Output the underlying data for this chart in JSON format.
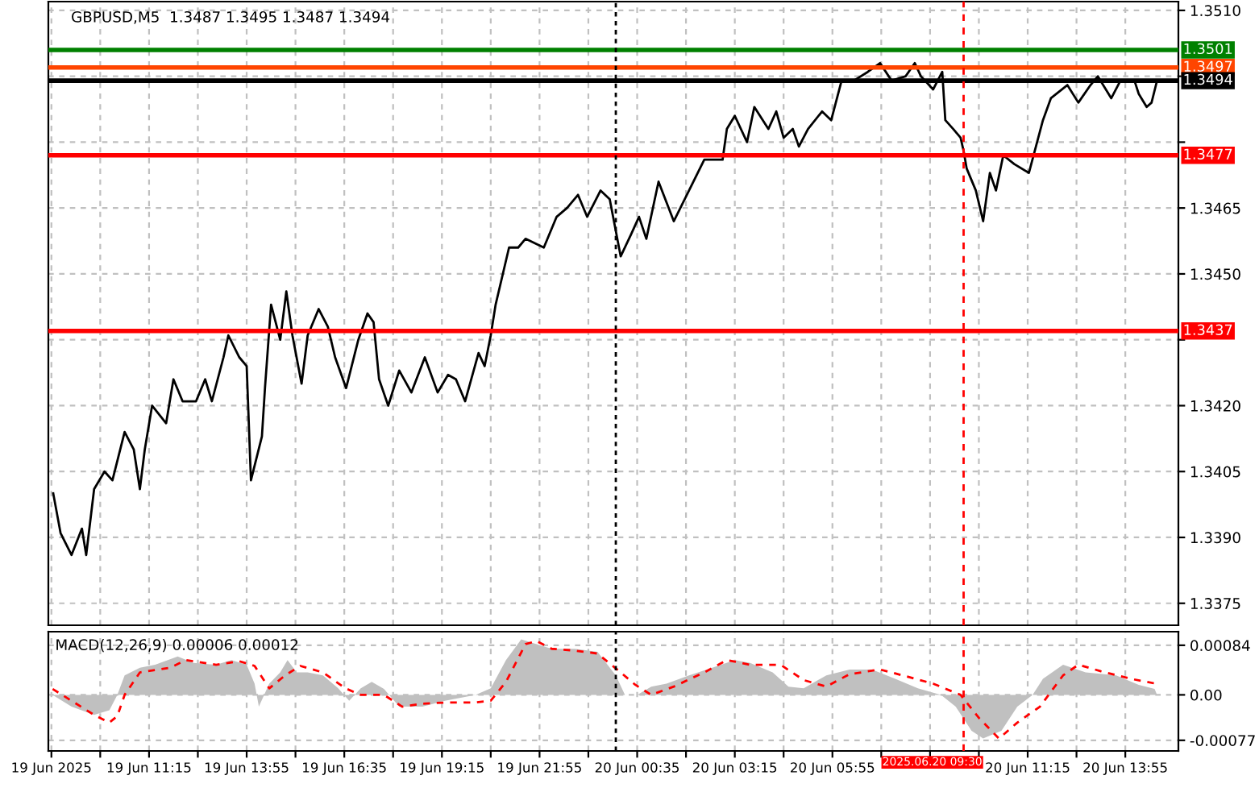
{
  "chart_data": [
    {
      "type": "line",
      "title": "GBPUSD,M5  1.3487 1.3495 1.3487 1.3494",
      "tick_labels": "y",
      "grid": true,
      "xlim": [
        "2025-06-19T08:30",
        "2025-06-20T15:22"
      ],
      "ylim": [
        1.337,
        1.3512
      ],
      "xticks": [
        {
          "value": "2025-06-19T08:35",
          "label": null
        },
        {
          "value": "2025-06-19T09:55",
          "label": null
        },
        {
          "value": "2025-06-19T11:15",
          "label": null
        },
        {
          "value": "2025-06-19T12:35",
          "label": null
        },
        {
          "value": "2025-06-19T13:55",
          "label": null
        },
        {
          "value": "2025-06-19T15:15",
          "label": null
        },
        {
          "value": "2025-06-19T16:35",
          "label": null
        },
        {
          "value": "2025-06-19T17:55",
          "label": null
        },
        {
          "value": "2025-06-19T19:15",
          "label": null
        },
        {
          "value": "2025-06-19T20:35",
          "label": null
        },
        {
          "value": "2025-06-19T21:55",
          "label": null
        },
        {
          "value": "2025-06-19T23:15",
          "label": null
        },
        {
          "value": "2025-06-20T00:35",
          "label": null
        },
        {
          "value": "2025-06-20T01:55",
          "label": null
        },
        {
          "value": "2025-06-20T03:15",
          "label": null
        },
        {
          "value": "2025-06-20T04:35",
          "label": null
        },
        {
          "value": "2025-06-20T05:55",
          "label": null
        },
        {
          "value": "2025-06-20T07:15",
          "label": null
        },
        {
          "value": "2025-06-20T08:35",
          "label": null
        },
        {
          "value": "2025-06-20T09:55",
          "label": null
        },
        {
          "value": "2025-06-20T11:15",
          "label": null
        },
        {
          "value": "2025-06-20T12:35",
          "label": null
        },
        {
          "value": "2025-06-20T13:55",
          "label": null
        }
      ],
      "yticks": [
        1.3375,
        {
          "value": 1.339,
          "label": "1.3390"
        },
        1.3405,
        {
          "value": 1.342,
          "label": "1.3420"
        },
        {
          "value": 1.3435,
          "label": null
        },
        {
          "value": 1.345,
          "label": "1.3450"
        },
        1.3465,
        {
          "value": 1.348,
          "label": null
        },
        {
          "value": 1.3495,
          "label": null
        },
        {
          "value": 1.351,
          "label": "1.3510"
        }
      ],
      "ref_lines": [
        {
          "axis": "y",
          "value": 1.3501,
          "label": "1.3501",
          "color": "#008000"
        },
        {
          "axis": "y",
          "value": 1.3497,
          "label": "1.3497",
          "color": "#ff4500"
        },
        {
          "axis": "y",
          "value": 1.3494,
          "label": "1.3494",
          "color": "#000000"
        },
        {
          "axis": "y",
          "value": 1.3477,
          "label": "1.3477",
          "color": "#ff0000"
        },
        {
          "axis": "y",
          "value": 1.3437,
          "label": "1.3437",
          "color": "#ff0000"
        },
        {
          "axis": "x",
          "value": "2025-06-20T00:00",
          "label": null,
          "color": "#000000",
          "line_style": "dotted"
        },
        {
          "axis": "x",
          "value": "2025-06-20T09:30",
          "label": null,
          "color": "#ff0000",
          "line_style": "dashed"
        }
      ],
      "series": [
        {
          "color": "#000000",
          "x": [
            "2025-06-19T08:38",
            "2025-06-19T08:50",
            "2025-06-19T09:08",
            "2025-06-19T09:25",
            "2025-06-19T09:32",
            "2025-06-19T09:45",
            "2025-06-19T10:02",
            "2025-06-19T10:15",
            "2025-06-19T10:35",
            "2025-06-19T10:50",
            "2025-06-19T11:00",
            "2025-06-19T11:08",
            "2025-06-19T11:20",
            "2025-06-19T11:43",
            "2025-06-19T11:55",
            "2025-06-19T12:10",
            "2025-06-19T12:32",
            "2025-06-19T12:47",
            "2025-06-19T12:58",
            "2025-06-19T13:17",
            "2025-06-19T13:25",
            "2025-06-19T13:43",
            "2025-06-19T13:55",
            "2025-06-19T14:02",
            "2025-06-19T14:20",
            "2025-06-19T14:25",
            "2025-06-19T14:35",
            "2025-06-19T14:50",
            "2025-06-19T15:00",
            "2025-06-19T15:10",
            "2025-06-19T15:25",
            "2025-06-19T15:35",
            "2025-06-19T15:53",
            "2025-06-19T16:08",
            "2025-06-19T16:20",
            "2025-06-19T16:38",
            "2025-06-19T16:58",
            "2025-06-19T17:13",
            "2025-06-19T17:23",
            "2025-06-19T17:32",
            "2025-06-19T17:47",
            "2025-06-19T18:05",
            "2025-06-19T18:25",
            "2025-06-19T18:47",
            "2025-06-19T19:08",
            "2025-06-19T19:25",
            "2025-06-19T19:38",
            "2025-06-19T19:53",
            "2025-06-19T20:15",
            "2025-06-19T20:25",
            "2025-06-19T20:35",
            "2025-06-19T20:43",
            "2025-06-19T21:05",
            "2025-06-19T21:20",
            "2025-06-19T21:32",
            "2025-06-19T22:02",
            "2025-06-19T22:23",
            "2025-06-19T22:40",
            "2025-06-19T22:58",
            "2025-06-19T23:13",
            "2025-06-19T23:35",
            "2025-06-19T23:50",
            "2025-06-20T00:08",
            "2025-06-20T00:25",
            "2025-06-20T00:38",
            "2025-06-20T00:50",
            "2025-06-20T01:10",
            "2025-06-20T01:35",
            "2025-06-20T02:00",
            "2025-06-20T02:25",
            "2025-06-20T02:55",
            "2025-06-20T03:02",
            "2025-06-20T03:15",
            "2025-06-20T03:35",
            "2025-06-20T03:47",
            "2025-06-20T04:10",
            "2025-06-20T04:23",
            "2025-06-20T04:35",
            "2025-06-20T04:50",
            "2025-06-20T05:00",
            "2025-06-20T05:15",
            "2025-06-20T05:38",
            "2025-06-20T05:53",
            "2025-06-20T06:10",
            "2025-06-20T06:30",
            "2025-06-20T06:53",
            "2025-06-20T07:13",
            "2025-06-20T07:32",
            "2025-06-20T07:55",
            "2025-06-20T08:10",
            "2025-06-20T08:20",
            "2025-06-20T08:40",
            "2025-06-20T08:55",
            "2025-06-20T09:00",
            "2025-06-20T09:13",
            "2025-06-20T09:25",
            "2025-06-20T09:30",
            "2025-06-20T09:35",
            "2025-06-20T09:50",
            "2025-06-20T10:02",
            "2025-06-20T10:13",
            "2025-06-20T10:23",
            "2025-06-20T10:35",
            "2025-06-20T10:53",
            "2025-06-20T11:17",
            "2025-06-20T11:40",
            "2025-06-20T11:53",
            "2025-06-20T12:20",
            "2025-06-20T12:38",
            "2025-06-20T12:58",
            "2025-06-20T13:10",
            "2025-06-20T13:32",
            "2025-06-20T13:47",
            "2025-06-20T14:10",
            "2025-06-20T14:17",
            "2025-06-20T14:30",
            "2025-06-20T14:38",
            "2025-06-20T14:47"
          ],
          "values": [
            1.34,
            1.3391,
            1.3386,
            1.3392,
            1.3386,
            1.3401,
            1.3405,
            1.3403,
            1.3414,
            1.341,
            1.3401,
            1.341,
            1.342,
            1.3416,
            1.3426,
            1.3421,
            1.3421,
            1.3426,
            1.3421,
            1.3431,
            1.3436,
            1.3431,
            1.3429,
            1.3403,
            1.3413,
            1.3424,
            1.3443,
            1.3435,
            1.3446,
            1.3436,
            1.3425,
            1.3436,
            1.3442,
            1.3438,
            1.3431,
            1.3424,
            1.3435,
            1.3441,
            1.3439,
            1.3426,
            1.342,
            1.3428,
            1.3423,
            1.3431,
            1.3423,
            1.3427,
            1.3426,
            1.3421,
            1.3432,
            1.3429,
            1.3436,
            1.3443,
            1.3456,
            1.3456,
            1.3458,
            1.3456,
            1.3463,
            1.3465,
            1.3468,
            1.3463,
            1.3469,
            1.3467,
            1.3454,
            1.3459,
            1.3463,
            1.3458,
            1.3471,
            1.3462,
            1.3469,
            1.3476,
            1.3476,
            1.3483,
            1.3486,
            1.348,
            1.3488,
            1.3483,
            1.3487,
            1.3481,
            1.3483,
            1.3479,
            1.3483,
            1.3487,
            1.3485,
            1.3494,
            1.3494,
            1.3496,
            1.3498,
            1.3494,
            1.3495,
            1.3498,
            1.3495,
            1.3492,
            1.3496,
            1.3485,
            1.3483,
            1.3481,
            1.3478,
            1.3474,
            1.3469,
            1.3462,
            1.3473,
            1.3469,
            1.3477,
            1.3475,
            1.3473,
            1.3485,
            1.349,
            1.3493,
            1.3489,
            1.3493,
            1.3495,
            1.349,
            1.3494,
            1.3494,
            1.3491,
            1.3488,
            1.3489,
            1.3494
          ]
        }
      ]
    },
    {
      "type": "line",
      "title": "MACD(12,26,9) 0.00006 0.00012",
      "grid": true,
      "xlim": [
        "2025-06-19T08:30",
        "2025-06-20T15:22"
      ],
      "ylim": [
        -0.00095,
        0.00107
      ],
      "xticks": [
        {
          "value": "2025-06-19T08:35",
          "label": "19 Jun 2025"
        },
        {
          "value": "2025-06-19T09:55",
          "label": null
        },
        {
          "value": "2025-06-19T11:15",
          "label": "19 Jun 11:15"
        },
        {
          "value": "2025-06-19T12:35",
          "label": null
        },
        {
          "value": "2025-06-19T13:55",
          "label": "19 Jun 13:55"
        },
        {
          "value": "2025-06-19T15:15",
          "label": null
        },
        {
          "value": "2025-06-19T16:35",
          "label": "19 Jun 16:35"
        },
        {
          "value": "2025-06-19T17:55",
          "label": null
        },
        {
          "value": "2025-06-19T19:15",
          "label": "19 Jun 19:15"
        },
        {
          "value": "2025-06-19T20:35",
          "label": null
        },
        {
          "value": "2025-06-19T21:55",
          "label": "19 Jun 21:55"
        },
        {
          "value": "2025-06-19T23:15",
          "label": null
        },
        {
          "value": "2025-06-20T00:35",
          "label": "20 Jun 00:35"
        },
        {
          "value": "2025-06-20T01:55",
          "label": null
        },
        {
          "value": "2025-06-20T03:15",
          "label": "20 Jun 03:15"
        },
        {
          "value": "2025-06-20T04:35",
          "label": null
        },
        {
          "value": "2025-06-20T05:55",
          "label": "20 Jun 05:55"
        },
        {
          "value": "2025-06-20T07:15",
          "label": null
        },
        {
          "value": "2025-06-20T08:35",
          "label": null
        },
        {
          "value": "2025-06-20T09:55",
          "label": null
        },
        {
          "value": "2025-06-20T11:15",
          "label": "20 Jun 11:15"
        },
        {
          "value": "2025-06-20T12:35",
          "label": null
        },
        {
          "value": "2025-06-20T13:55",
          "label": "20 Jun 13:55"
        }
      ],
      "yticks": [
        {
          "value": -0.00077,
          "label": "-0.00077"
        },
        {
          "value": 0,
          "label": "0.00"
        },
        0.00084
      ],
      "ref_lines": [
        {
          "axis": "x",
          "value": "2025-06-20T00:00",
          "label": null,
          "color": "#000000",
          "line_style": "dotted"
        },
        {
          "axis": "x",
          "value": "2025-06-20T09:30",
          "label": "2025.06.20 09:30",
          "color": "#ff0000",
          "line_style": "dashed"
        }
      ],
      "series": [
        {
          "type": "area",
          "color": "#c0c0c0",
          "x": [
            "2025-06-19T08:37",
            "2025-06-19T09:08",
            "2025-06-19T09:45",
            "2025-06-19T10:10",
            "2025-06-19T10:23",
            "2025-06-19T10:35",
            "2025-06-19T11:00",
            "2025-06-19T11:25",
            "2025-06-19T12:02",
            "2025-06-19T12:28",
            "2025-06-19T13:05",
            "2025-06-19T13:30",
            "2025-06-19T13:55",
            "2025-06-19T14:08",
            "2025-06-19T14:15",
            "2025-06-19T14:32",
            "2025-06-19T14:50",
            "2025-06-19T15:02",
            "2025-06-19T15:17",
            "2025-06-19T15:35",
            "2025-06-19T16:00",
            "2025-06-19T16:25",
            "2025-06-19T16:43",
            "2025-06-19T17:02",
            "2025-06-19T17:20",
            "2025-06-19T17:40",
            "2025-06-19T18:05",
            "2025-06-19T18:43",
            "2025-06-19T19:20",
            "2025-06-19T20:10",
            "2025-06-19T20:35",
            "2025-06-19T21:00",
            "2025-06-19T21:25",
            "2025-06-19T21:50",
            "2025-06-19T22:15",
            "2025-06-19T22:53",
            "2025-06-19T23:30",
            "2025-06-20T00:00",
            "2025-06-20T00:15",
            "2025-06-20T00:35",
            "2025-06-20T00:58",
            "2025-06-20T01:23",
            "2025-06-20T02:00",
            "2025-06-20T02:38",
            "2025-06-20T03:15",
            "2025-06-20T03:40",
            "2025-06-20T04:17",
            "2025-06-20T04:43",
            "2025-06-20T05:08",
            "2025-06-20T05:45",
            "2025-06-20T06:23",
            "2025-06-20T07:00",
            "2025-06-20T07:38",
            "2025-06-20T08:15",
            "2025-06-20T08:53",
            "2025-06-20T09:17",
            "2025-06-20T09:43",
            "2025-06-20T10:02",
            "2025-06-20T10:32",
            "2025-06-20T10:58",
            "2025-06-20T11:23",
            "2025-06-20T11:40",
            "2025-06-20T12:13",
            "2025-06-20T12:50",
            "2025-06-20T13:40",
            "2025-06-20T14:17",
            "2025-06-20T14:43",
            "2025-06-20T14:47"
          ],
          "values": [
            0,
            -0.0002,
            -0.00034,
            -0.00026,
            0,
            0.00033,
            0.00046,
            0.00051,
            0.00065,
            0.00054,
            0.00051,
            0.00059,
            0.00051,
            0.00019,
            -0.0002,
            0.00019,
            0.00038,
            0.00059,
            0.00038,
            0.00038,
            0.00033,
            0.00011,
            -0.0001,
            0.00011,
            0.00022,
            0.0001,
            -0.0002,
            -0.0002,
            -0.0001,
            0,
            0.00011,
            0.00059,
            0.00094,
            0.00086,
            0.00078,
            0.00078,
            0.00073,
            0.00033,
            0,
            0,
            0.00014,
            0.00019,
            0.00033,
            0.00046,
            0.00059,
            0.00054,
            0.00038,
            0.00014,
            0.00011,
            0.00033,
            0.00043,
            0.00043,
            0.00027,
            0.00011,
            0,
            -0.0002,
            -0.00061,
            -0.00074,
            -0.00061,
            -0.0002,
            0,
            0.00027,
            0.00051,
            0.00038,
            0.00033,
            0.00017,
            0.0001,
            0
          ]
        },
        {
          "type": "line",
          "color": "#ff0000",
          "line_style": "dashed",
          "x": [
            "2025-06-19T08:37",
            "2025-06-19T09:08",
            "2025-06-19T09:45",
            "2025-06-19T10:10",
            "2025-06-19T10:23",
            "2025-06-19T10:35",
            "2025-06-19T11:00",
            "2025-06-19T11:50",
            "2025-06-19T12:15",
            "2025-06-19T13:05",
            "2025-06-19T13:43",
            "2025-06-19T14:08",
            "2025-06-19T14:32",
            "2025-06-19T14:58",
            "2025-06-19T15:23",
            "2025-06-19T16:00",
            "2025-06-19T16:37",
            "2025-06-19T17:02",
            "2025-06-19T17:40",
            "2025-06-19T18:10",
            "2025-06-19T18:43",
            "2025-06-19T19:20",
            "2025-06-19T20:10",
            "2025-06-19T20:35",
            "2025-06-19T21:00",
            "2025-06-19T21:32",
            "2025-06-19T21:50",
            "2025-06-19T22:15",
            "2025-06-19T22:53",
            "2025-06-19T23:30",
            "2025-06-20T00:08",
            "2025-06-20T00:32",
            "2025-06-20T00:58",
            "2025-06-20T01:35",
            "2025-06-20T02:25",
            "2025-06-20T03:02",
            "2025-06-20T03:40",
            "2025-06-20T04:30",
            "2025-06-20T05:08",
            "2025-06-20T05:45",
            "2025-06-20T06:23",
            "2025-06-20T07:13",
            "2025-06-20T07:50",
            "2025-06-20T08:40",
            "2025-06-20T09:25",
            "2025-06-20T09:55",
            "2025-06-20T10:28",
            "2025-06-20T10:58",
            "2025-06-20T11:35",
            "2025-06-20T12:13",
            "2025-06-20T12:38",
            "2025-06-20T13:15",
            "2025-06-20T14:05",
            "2025-06-20T14:45"
          ],
          "values": [
            0.0001,
            -0.0001,
            -0.00034,
            -0.00047,
            -0.00036,
            0,
            0.00038,
            0.00046,
            0.00059,
            0.00051,
            0.00057,
            0.00049,
            0.00011,
            0.00033,
            0.00049,
            0.00038,
            0.00011,
            0,
            0,
            -0.0002,
            -0.00015,
            -0.00013,
            -0.00013,
            -0.0001,
            0.00022,
            0.00086,
            0.00091,
            0.00078,
            0.00075,
            0.0007,
            0.00038,
            0.00017,
            0,
            0.00014,
            0.00038,
            0.00059,
            0.00051,
            0.00051,
            0.00025,
            0.00014,
            0.00035,
            0.00043,
            0.00033,
            0.00019,
            0,
            -0.00039,
            -0.00074,
            -0.00047,
            -0.0002,
            0.00033,
            0.00051,
            0.0004,
            0.00027,
            0.00019
          ]
        }
      ]
    }
  ]
}
